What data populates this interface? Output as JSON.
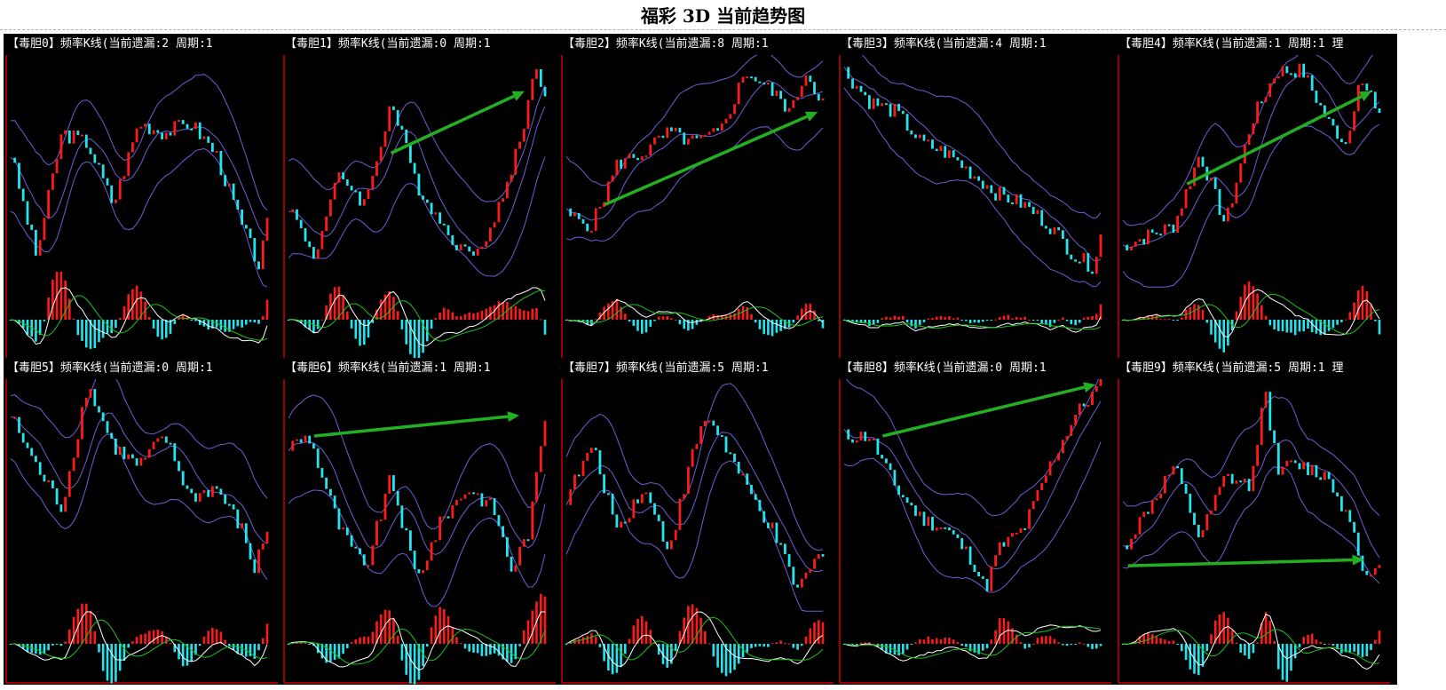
{
  "page": {
    "title": "福彩 3D 当前趋势图"
  },
  "colors": {
    "background": "#000000",
    "axis": "#cc0000",
    "candle_up": "#ff1a1a",
    "candle_down": "#22e5f0",
    "bands": "#6b5fd6",
    "arrow": "#22b022",
    "macd_dif": "#ffffff",
    "macd_dea": "#19c419",
    "header_text": "#ffffff"
  },
  "chart_data": [
    {
      "type": "candlestick",
      "panel": "毒胆0",
      "title": "【毒胆0】频率K线(当前遗漏:2 周期:1",
      "trend_arrow": false,
      "shape": [
        [
          0,
          0.55
        ],
        [
          0.1,
          0.05
        ],
        [
          0.2,
          0.65
        ],
        [
          0.3,
          0.6
        ],
        [
          0.4,
          0.3
        ],
        [
          0.5,
          0.7
        ],
        [
          0.6,
          0.65
        ],
        [
          0.7,
          0.7
        ],
        [
          0.8,
          0.55
        ],
        [
          0.9,
          0.2
        ],
        [
          0.97,
          0.0
        ],
        [
          1.0,
          0.2
        ]
      ]
    },
    {
      "type": "candlestick",
      "panel": "毒胆1",
      "title": "【毒胆1】频率K线(当前遗漏:0 周期:1",
      "trend_arrow": true,
      "arrow": [
        0.4,
        0.55,
        0.92,
        0.85
      ],
      "shape": [
        [
          0,
          0.3
        ],
        [
          0.1,
          0.05
        ],
        [
          0.2,
          0.45
        ],
        [
          0.3,
          0.3
        ],
        [
          0.4,
          0.8
        ],
        [
          0.5,
          0.4
        ],
        [
          0.6,
          0.2
        ],
        [
          0.7,
          0.05
        ],
        [
          0.8,
          0.2
        ],
        [
          0.9,
          0.6
        ],
        [
          0.97,
          1.0
        ],
        [
          1.0,
          0.8
        ]
      ]
    },
    {
      "type": "candlestick",
      "panel": "毒胆2",
      "title": "【毒胆2】频率K线(当前遗漏:8 周期:1",
      "trend_arrow": true,
      "arrow": [
        0.15,
        0.3,
        0.98,
        0.75
      ],
      "shape": [
        [
          0,
          0.25
        ],
        [
          0.1,
          0.2
        ],
        [
          0.2,
          0.5
        ],
        [
          0.3,
          0.55
        ],
        [
          0.4,
          0.65
        ],
        [
          0.5,
          0.6
        ],
        [
          0.6,
          0.65
        ],
        [
          0.7,
          0.95
        ],
        [
          0.8,
          0.85
        ],
        [
          0.88,
          0.75
        ],
        [
          0.93,
          0.95
        ],
        [
          1.0,
          0.8
        ]
      ]
    },
    {
      "type": "candlestick",
      "panel": "毒胆3",
      "title": "【毒胆3】频率K线(当前遗漏:4 周期:1",
      "trend_arrow": false,
      "shape": [
        [
          0,
          0.95
        ],
        [
          0.1,
          0.8
        ],
        [
          0.2,
          0.75
        ],
        [
          0.3,
          0.6
        ],
        [
          0.4,
          0.55
        ],
        [
          0.5,
          0.45
        ],
        [
          0.6,
          0.35
        ],
        [
          0.7,
          0.3
        ],
        [
          0.8,
          0.2
        ],
        [
          0.9,
          0.05
        ],
        [
          0.97,
          0.0
        ],
        [
          1.0,
          0.15
        ]
      ]
    },
    {
      "type": "candlestick",
      "panel": "毒胆4",
      "title": "【毒胆4】频率K线(当前遗漏:1 周期:1 理",
      "trend_arrow": true,
      "arrow": [
        0.25,
        0.4,
        0.97,
        0.85
      ],
      "shape": [
        [
          0,
          0.1
        ],
        [
          0.1,
          0.15
        ],
        [
          0.2,
          0.2
        ],
        [
          0.3,
          0.55
        ],
        [
          0.4,
          0.2
        ],
        [
          0.5,
          0.7
        ],
        [
          0.6,
          0.95
        ],
        [
          0.7,
          0.95
        ],
        [
          0.8,
          0.7
        ],
        [
          0.87,
          0.6
        ],
        [
          0.92,
          0.9
        ],
        [
          1.0,
          0.75
        ]
      ]
    }
  ],
  "panels_row2": [
    {
      "type": "candlestick",
      "panel": "毒胆5",
      "title": "【毒胆5】频率K线(当前遗漏:0 周期:1",
      "trend_arrow": false,
      "shape": [
        [
          0,
          0.85
        ],
        [
          0.1,
          0.6
        ],
        [
          0.2,
          0.4
        ],
        [
          0.3,
          1.0
        ],
        [
          0.4,
          0.7
        ],
        [
          0.5,
          0.6
        ],
        [
          0.6,
          0.75
        ],
        [
          0.7,
          0.45
        ],
        [
          0.8,
          0.5
        ],
        [
          0.9,
          0.3
        ],
        [
          0.95,
          0.1
        ],
        [
          1.0,
          0.3
        ]
      ]
    },
    {
      "type": "candlestick",
      "panel": "毒胆6",
      "title": "【毒胆6】频率K线(当前遗漏:1 周期:1",
      "trend_arrow": true,
      "arrow": [
        0.1,
        0.75,
        0.9,
        0.85
      ],
      "shape": [
        [
          0,
          0.7
        ],
        [
          0.08,
          0.75
        ],
        [
          0.2,
          0.3
        ],
        [
          0.3,
          0.1
        ],
        [
          0.4,
          0.55
        ],
        [
          0.5,
          0.05
        ],
        [
          0.6,
          0.35
        ],
        [
          0.7,
          0.5
        ],
        [
          0.8,
          0.4
        ],
        [
          0.87,
          0.1
        ],
        [
          0.94,
          0.3
        ],
        [
          1.0,
          0.85
        ]
      ]
    },
    {
      "type": "candlestick",
      "panel": "毒胆7",
      "title": "【毒胆7】频率K线(当前遗漏:5 周期:1",
      "trend_arrow": false,
      "shape": [
        [
          0,
          0.45
        ],
        [
          0.1,
          0.7
        ],
        [
          0.2,
          0.3
        ],
        [
          0.3,
          0.5
        ],
        [
          0.4,
          0.2
        ],
        [
          0.5,
          0.7
        ],
        [
          0.55,
          0.85
        ],
        [
          0.6,
          0.75
        ],
        [
          0.7,
          0.5
        ],
        [
          0.8,
          0.3
        ],
        [
          0.9,
          0.0
        ],
        [
          1.0,
          0.2
        ]
      ]
    },
    {
      "type": "candlestick",
      "panel": "毒胆8",
      "title": "【毒胆8】频率K线(当前遗漏:0 周期:1",
      "trend_arrow": true,
      "arrow": [
        0.15,
        0.75,
        0.98,
        1.0
      ],
      "shape": [
        [
          0,
          0.75
        ],
        [
          0.1,
          0.75
        ],
        [
          0.2,
          0.5
        ],
        [
          0.3,
          0.35
        ],
        [
          0.4,
          0.3
        ],
        [
          0.5,
          0.15
        ],
        [
          0.55,
          0.0
        ],
        [
          0.6,
          0.2
        ],
        [
          0.7,
          0.3
        ],
        [
          0.8,
          0.6
        ],
        [
          0.9,
          0.85
        ],
        [
          1.0,
          1.0
        ]
      ]
    },
    {
      "type": "candlestick",
      "panel": "毒胆9",
      "title": "【毒胆9】频率K线(当前遗漏:5 周期:1 理",
      "trend_arrow": true,
      "arrow": [
        0.02,
        0.12,
        0.94,
        0.15
      ],
      "shape": [
        [
          0,
          0.2
        ],
        [
          0.1,
          0.4
        ],
        [
          0.2,
          0.6
        ],
        [
          0.3,
          0.25
        ],
        [
          0.4,
          0.55
        ],
        [
          0.5,
          0.5
        ],
        [
          0.55,
          1.0
        ],
        [
          0.6,
          0.6
        ],
        [
          0.7,
          0.6
        ],
        [
          0.8,
          0.55
        ],
        [
          0.9,
          0.3
        ],
        [
          0.95,
          0.05
        ],
        [
          1.0,
          0.1
        ]
      ]
    }
  ]
}
